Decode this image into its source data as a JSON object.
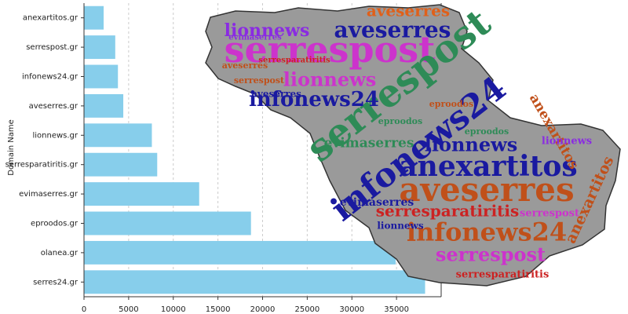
{
  "chart_data": {
    "type": "barh",
    "y_label": "Domain Name",
    "categories": [
      "anexartitos.gr",
      "serrespost.gr",
      "infonews24.gr",
      "aveserres.gr",
      "lionnews.gr",
      "serresparatiritis.gr",
      "evimaserres.gr",
      "eproodos.gr",
      "olanea.gr",
      "serres24.gr"
    ],
    "values": [
      2200,
      3500,
      3800,
      4400,
      7600,
      8200,
      12900,
      18700,
      34900,
      38200
    ],
    "color": "#87ceeb",
    "xlim": [
      0,
      40000
    ],
    "xticks": [
      0,
      5000,
      10000,
      15000,
      20000,
      25000,
      30000,
      35000
    ],
    "grid": true,
    "wordcloud": [
      {
        "text": "aveserres",
        "color": "#e0601a"
      },
      {
        "text": "aveserres",
        "color": "#1a1aa0"
      },
      {
        "text": "lionnews",
        "color": "#8a2be2"
      },
      {
        "text": "serrespost",
        "color": "#cc33cc"
      },
      {
        "text": "serrespost",
        "color": "#2e8b57"
      },
      {
        "text": "lionnews",
        "color": "#cc33cc"
      },
      {
        "text": "infonews24",
        "color": "#1a1aa0"
      },
      {
        "text": "infonews24",
        "color": "#1a1aa0"
      },
      {
        "text": "anexartitos",
        "color": "#1a1aa0"
      },
      {
        "text": "aveserres",
        "color": "#c0501a"
      },
      {
        "text": "lionnews",
        "color": "#1a1aa0"
      },
      {
        "text": "evimaserres",
        "color": "#2e8b57"
      },
      {
        "text": "serresparatiritis",
        "color": "#cc2222"
      },
      {
        "text": "infonews24",
        "color": "#c0501a"
      },
      {
        "text": "serrespost",
        "color": "#cc33cc"
      },
      {
        "text": "serresparatiritis",
        "color": "#cc2222"
      },
      {
        "text": "anexartitos",
        "color": "#c0501a"
      },
      {
        "text": "anexartitos",
        "color": "#c0501a"
      },
      {
        "text": "lionnews",
        "color": "#8a2be2"
      },
      {
        "text": "eproodos",
        "color": "#2e8b57"
      },
      {
        "text": "eproodos",
        "color": "#c0501a"
      },
      {
        "text": "serrespost",
        "color": "#c0501a"
      },
      {
        "text": "evimaserres",
        "color": "#8a2be2"
      },
      {
        "text": "aveserres",
        "color": "#c0501a"
      },
      {
        "text": "serresparatiritis",
        "color": "#cc2222"
      },
      {
        "text": "aveserres",
        "color": "#1a1aa0"
      },
      {
        "text": "evimaserres",
        "color": "#1a1aa0"
      },
      {
        "text": "lionnews",
        "color": "#1a1aa0"
      },
      {
        "text": "serrespost",
        "color": "#cc33cc"
      },
      {
        "text": "eproodos",
        "color": "#2e8b57"
      }
    ]
  }
}
